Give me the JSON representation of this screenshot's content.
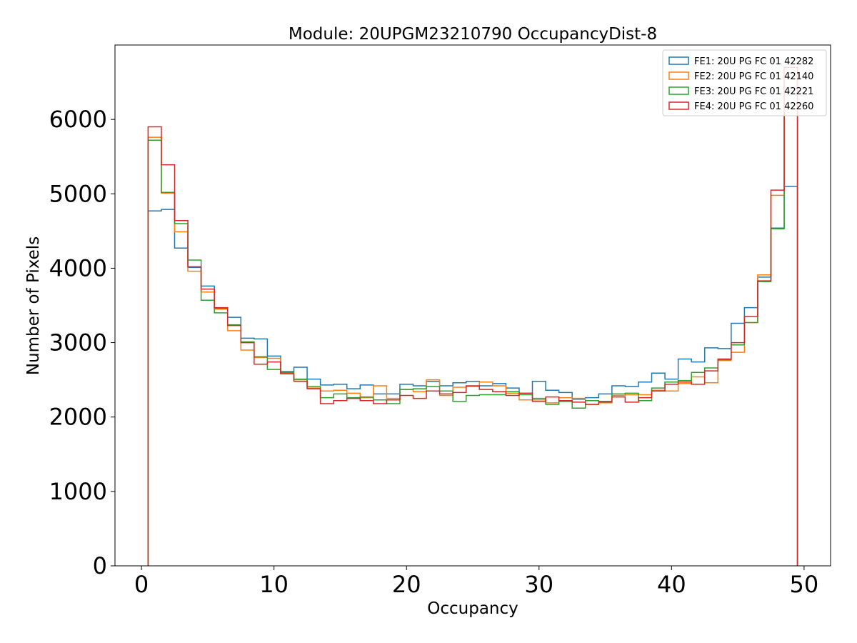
{
  "chart_data": {
    "type": "line",
    "style": "step-histogram",
    "title": "Module: 20UPGM23210790 OccupancyDist-8",
    "xlabel": "Occupancy",
    "ylabel": "Number of Pixels",
    "xlim": [
      -2,
      52
    ],
    "ylim": [
      0,
      7000
    ],
    "xticks": [
      0,
      10,
      20,
      30,
      40,
      50
    ],
    "yticks": [
      0,
      1000,
      2000,
      3000,
      4000,
      5000,
      6000
    ],
    "grid": false,
    "legend_position": "top-right",
    "bin_edges_start": 0.5,
    "bin_width": 1,
    "series": [
      {
        "name": "FE1: 20U PG FC 01 42282",
        "color": "#1f77b4",
        "values": [
          4770,
          4790,
          4270,
          4010,
          3760,
          3460,
          3340,
          3060,
          3050,
          2820,
          2610,
          2670,
          2510,
          2430,
          2440,
          2380,
          2430,
          2310,
          2310,
          2440,
          2420,
          2480,
          2420,
          2460,
          2480,
          2420,
          2450,
          2390,
          2320,
          2480,
          2360,
          2330,
          2240,
          2260,
          2310,
          2420,
          2410,
          2470,
          2590,
          2510,
          2780,
          2740,
          2930,
          2920,
          3260,
          3470,
          3880,
          4540,
          5100
        ]
      },
      {
        "name": "FE2: 20U PG FC 01 42140",
        "color": "#ff7f0e",
        "values": [
          5760,
          5010,
          4490,
          3960,
          3680,
          3450,
          3160,
          2900,
          2800,
          2790,
          2590,
          2500,
          2390,
          2350,
          2360,
          2320,
          2260,
          2420,
          2250,
          2370,
          2340,
          2500,
          2290,
          2400,
          2410,
          2470,
          2420,
          2320,
          2230,
          2230,
          2190,
          2260,
          2250,
          2170,
          2190,
          2290,
          2300,
          2300,
          2360,
          2350,
          2450,
          2540,
          2460,
          2760,
          2870,
          3270,
          3910,
          4980,
          6700
        ]
      },
      {
        "name": "FE3: 20U PG FC 01 42221",
        "color": "#2ca02c",
        "values": [
          5720,
          5020,
          4600,
          4110,
          3570,
          3400,
          3240,
          3010,
          2810,
          2640,
          2600,
          2510,
          2410,
          2260,
          2310,
          2260,
          2270,
          2230,
          2180,
          2370,
          2380,
          2410,
          2350,
          2210,
          2290,
          2300,
          2300,
          2340,
          2300,
          2250,
          2170,
          2210,
          2120,
          2220,
          2200,
          2310,
          2320,
          2220,
          2390,
          2470,
          2490,
          2600,
          2660,
          2770,
          2970,
          3270,
          3820,
          4530,
          6700
        ]
      },
      {
        "name": "FE4: 20U PG FC 01 42260",
        "color": "#d62728",
        "values": [
          5900,
          5390,
          4640,
          4020,
          3720,
          3470,
          3230,
          3000,
          2710,
          2740,
          2580,
          2480,
          2380,
          2180,
          2220,
          2250,
          2220,
          2180,
          2230,
          2290,
          2250,
          2350,
          2310,
          2330,
          2420,
          2370,
          2340,
          2290,
          2320,
          2210,
          2270,
          2220,
          2200,
          2170,
          2210,
          2270,
          2200,
          2260,
          2350,
          2440,
          2470,
          2440,
          2620,
          2780,
          3000,
          3350,
          3830,
          5050,
          6700
        ]
      }
    ]
  }
}
